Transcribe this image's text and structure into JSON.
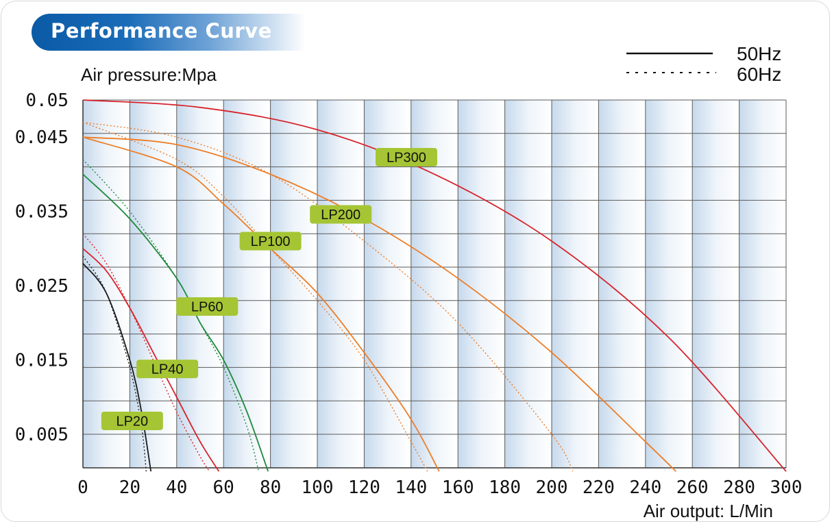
{
  "header": {
    "title": "Performance Curve"
  },
  "colors": {
    "title_bg": "#0a5aa6",
    "label_bg": "#a6c534",
    "grid": "#5a5a5a",
    "band": "#dbe8f4"
  },
  "chart_data": {
    "type": "line",
    "ylabel": "Air pressure:Mpa",
    "xlabel": "Air output: L/Min",
    "xlim": [
      0,
      300
    ],
    "ylim": [
      0,
      0.055
    ],
    "grid": true,
    "legend_placement": "top-right",
    "x_ticks": [
      "0",
      "20",
      "40",
      "60",
      "80",
      "100",
      "120",
      "140",
      "160",
      "180",
      "200",
      "220",
      "240",
      "260",
      "280",
      "300"
    ],
    "y_ticks": [
      {
        "label": "0.05",
        "value": 0.05
      },
      {
        "label": "0.045",
        "value": 0.045
      },
      {
        "label": "0.035",
        "value": 0.035
      },
      {
        "label": "0.025",
        "value": 0.025
      },
      {
        "label": "0.015",
        "value": 0.015
      },
      {
        "label": "0.005",
        "value": 0.005
      }
    ],
    "legend": [
      {
        "label": "50Hz",
        "style": "solid"
      },
      {
        "label": "60Hz",
        "style": "dotted"
      }
    ],
    "series": [
      {
        "name": "LP20",
        "color": "#1a1a1a",
        "style": "solid",
        "x": [
          0,
          10,
          20,
          25,
          29
        ],
        "y": [
          0.028,
          0.024,
          0.015,
          0.008,
          0
        ]
      },
      {
        "name": "LP20",
        "color": "#1a1a1a",
        "style": "dotted",
        "x": [
          0,
          10,
          20,
          25,
          27
        ],
        "y": [
          0.029,
          0.024,
          0.014,
          0.006,
          0
        ]
      },
      {
        "name": "LP40",
        "color": "#d9222a",
        "style": "solid",
        "x": [
          0,
          10,
          20,
          30,
          40,
          50,
          58
        ],
        "y": [
          0.03,
          0.027,
          0.022,
          0.016,
          0.01,
          0.004,
          0
        ]
      },
      {
        "name": "LP40",
        "color": "#d9222a",
        "style": "dotted",
        "x": [
          0,
          10,
          20,
          30,
          40,
          50,
          54
        ],
        "y": [
          0.032,
          0.028,
          0.022,
          0.015,
          0.008,
          0.002,
          0
        ]
      },
      {
        "name": "LP60",
        "color": "#1e8a3a",
        "style": "solid",
        "x": [
          0,
          20,
          40,
          50,
          60,
          70,
          79
        ],
        "y": [
          0.04,
          0.034,
          0.026,
          0.02,
          0.015,
          0.008,
          0
        ]
      },
      {
        "name": "LP60",
        "color": "#1e8a3a",
        "style": "dotted",
        "x": [
          0,
          20,
          40,
          50,
          60,
          70,
          75
        ],
        "y": [
          0.042,
          0.035,
          0.026,
          0.02,
          0.014,
          0.006,
          0
        ]
      },
      {
        "name": "LP100",
        "color": "#ee7d26",
        "style": "solid",
        "x": [
          0,
          40,
          60,
          80,
          100,
          120,
          140,
          152
        ],
        "y": [
          0.045,
          0.041,
          0.036,
          0.03,
          0.024,
          0.016,
          0.007,
          0
        ]
      },
      {
        "name": "LP100",
        "color": "#ee7d26",
        "style": "dotted",
        "x": [
          0,
          40,
          60,
          80,
          100,
          120,
          140,
          147
        ],
        "y": [
          0.047,
          0.042,
          0.037,
          0.03,
          0.023,
          0.015,
          0.004,
          0
        ]
      },
      {
        "name": "LP200",
        "color": "#ee7d26",
        "style": "solid",
        "x": [
          0,
          40,
          80,
          120,
          160,
          200,
          240,
          253
        ],
        "y": [
          0.045,
          0.044,
          0.04,
          0.034,
          0.026,
          0.016,
          0.004,
          0
        ]
      },
      {
        "name": "LP200",
        "color": "#ee7d26",
        "style": "dotted",
        "x": [
          0,
          40,
          80,
          120,
          160,
          200,
          209
        ],
        "y": [
          0.047,
          0.045,
          0.04,
          0.031,
          0.02,
          0.005,
          0
        ]
      },
      {
        "name": "LP300",
        "color": "#d9222a",
        "style": "solid",
        "x": [
          0,
          50,
          100,
          150,
          200,
          250,
          300
        ],
        "y": [
          0.05,
          0.049,
          0.046,
          0.04,
          0.031,
          0.018,
          0
        ]
      }
    ],
    "series_labels": [
      {
        "name": "LP300",
        "x": 138,
        "y": 0.0423
      },
      {
        "name": "LP200",
        "x": 110,
        "y": 0.0346
      },
      {
        "name": "LP100",
        "x": 80,
        "y": 0.031
      },
      {
        "name": "LP60",
        "x": 53,
        "y": 0.0222
      },
      {
        "name": "LP40",
        "x": 36,
        "y": 0.0138
      },
      {
        "name": "LP20",
        "x": 21,
        "y": 0.0068
      }
    ]
  }
}
